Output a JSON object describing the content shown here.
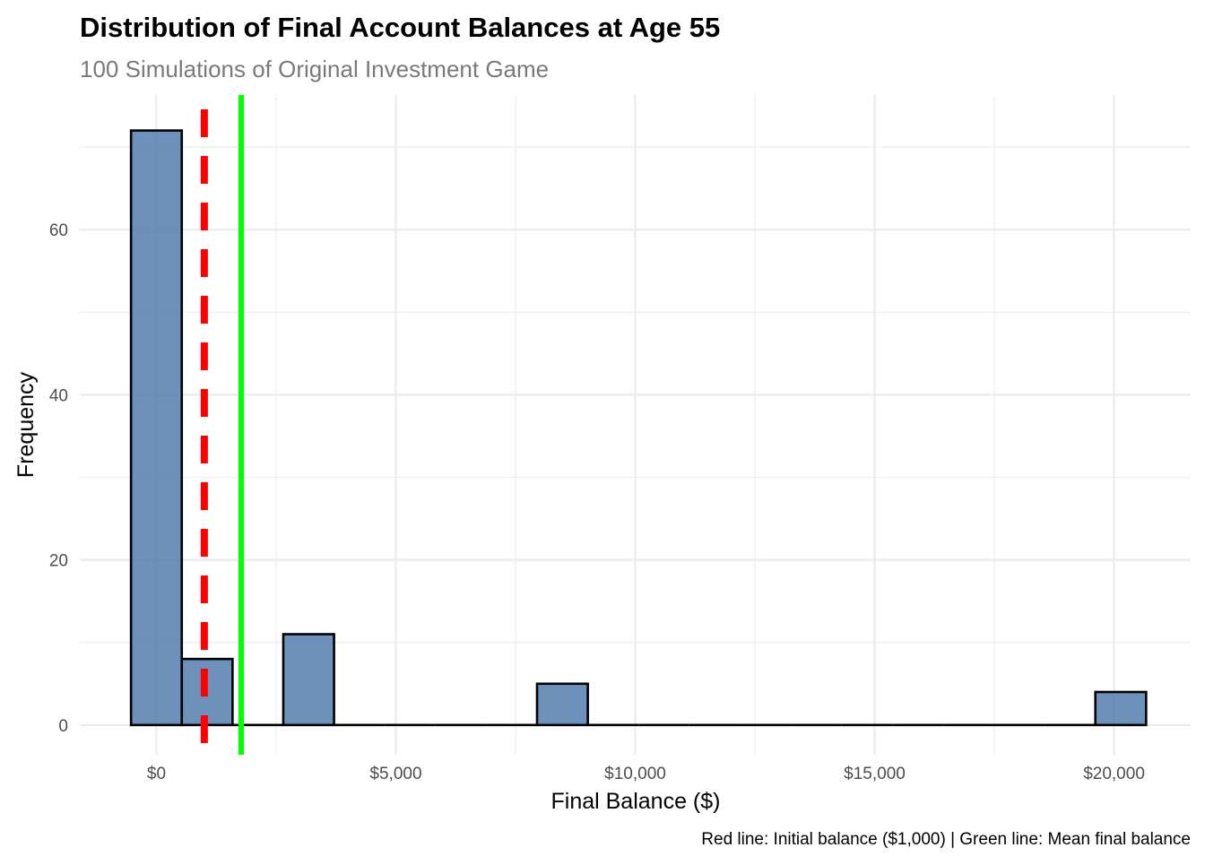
{
  "chart_data": {
    "type": "histogram",
    "title": "Distribution of Final Account Balances at Age 55",
    "subtitle": "100 Simulations of Original Investment Game",
    "xlabel": "Final Balance ($)",
    "ylabel": "Frequency",
    "caption": "Red line: Initial balance ($1,000) | Green line: Mean final balance",
    "xlim": [
      -1600,
      21600
    ],
    "ylim": [
      -3.6,
      76.3
    ],
    "x_ticks": [
      {
        "value": 0,
        "label": "$0"
      },
      {
        "value": 5000,
        "label": "$5,000"
      },
      {
        "value": 10000,
        "label": "$10,000"
      },
      {
        "value": 15000,
        "label": "$15,000"
      },
      {
        "value": 20000,
        "label": "$20,000"
      }
    ],
    "x_minor_ticks": [
      2500,
      7500,
      12500,
      17500
    ],
    "y_ticks": [
      {
        "value": 0,
        "label": "0"
      },
      {
        "value": 20,
        "label": "20"
      },
      {
        "value": 40,
        "label": "40"
      },
      {
        "value": 60,
        "label": "60"
      }
    ],
    "y_minor_ticks": [
      10,
      30,
      50,
      70
    ],
    "grid": true,
    "bins": [
      {
        "x_start": -530,
        "x_end": 530,
        "count": 72
      },
      {
        "x_start": 530,
        "x_end": 1590,
        "count": 8
      },
      {
        "x_start": 1590,
        "x_end": 2650,
        "count": 0
      },
      {
        "x_start": 2650,
        "x_end": 3710,
        "count": 11
      },
      {
        "x_start": 3710,
        "x_end": 4770,
        "count": 0
      },
      {
        "x_start": 4770,
        "x_end": 5830,
        "count": 0
      },
      {
        "x_start": 5830,
        "x_end": 6890,
        "count": 0
      },
      {
        "x_start": 6890,
        "x_end": 7950,
        "count": 0
      },
      {
        "x_start": 7950,
        "x_end": 9010,
        "count": 5
      },
      {
        "x_start": 9010,
        "x_end": 10070,
        "count": 0
      },
      {
        "x_start": 10070,
        "x_end": 11130,
        "count": 0
      },
      {
        "x_start": 11130,
        "x_end": 12190,
        "count": 0
      },
      {
        "x_start": 12190,
        "x_end": 13250,
        "count": 0
      },
      {
        "x_start": 13250,
        "x_end": 14310,
        "count": 0
      },
      {
        "x_start": 14310,
        "x_end": 15370,
        "count": 0
      },
      {
        "x_start": 15370,
        "x_end": 16430,
        "count": 0
      },
      {
        "x_start": 16430,
        "x_end": 17490,
        "count": 0
      },
      {
        "x_start": 17490,
        "x_end": 18550,
        "count": 0
      },
      {
        "x_start": 18550,
        "x_end": 19610,
        "count": 0
      },
      {
        "x_start": 19610,
        "x_end": 20670,
        "count": 4
      }
    ],
    "reference_lines": [
      {
        "name": "Initial balance",
        "value": 1000,
        "color": "#ff0000",
        "style": "dashed"
      },
      {
        "name": "Mean final balance",
        "value": 1770,
        "color": "#00ff00",
        "style": "solid"
      }
    ],
    "colors": {
      "bar_fill": "#4a76aa",
      "bar_stroke": "#000000",
      "grid": "#ebebeb",
      "title": "#000000",
      "subtitle": "#7a7a7a",
      "tick_label": "#4d4d4d"
    }
  }
}
